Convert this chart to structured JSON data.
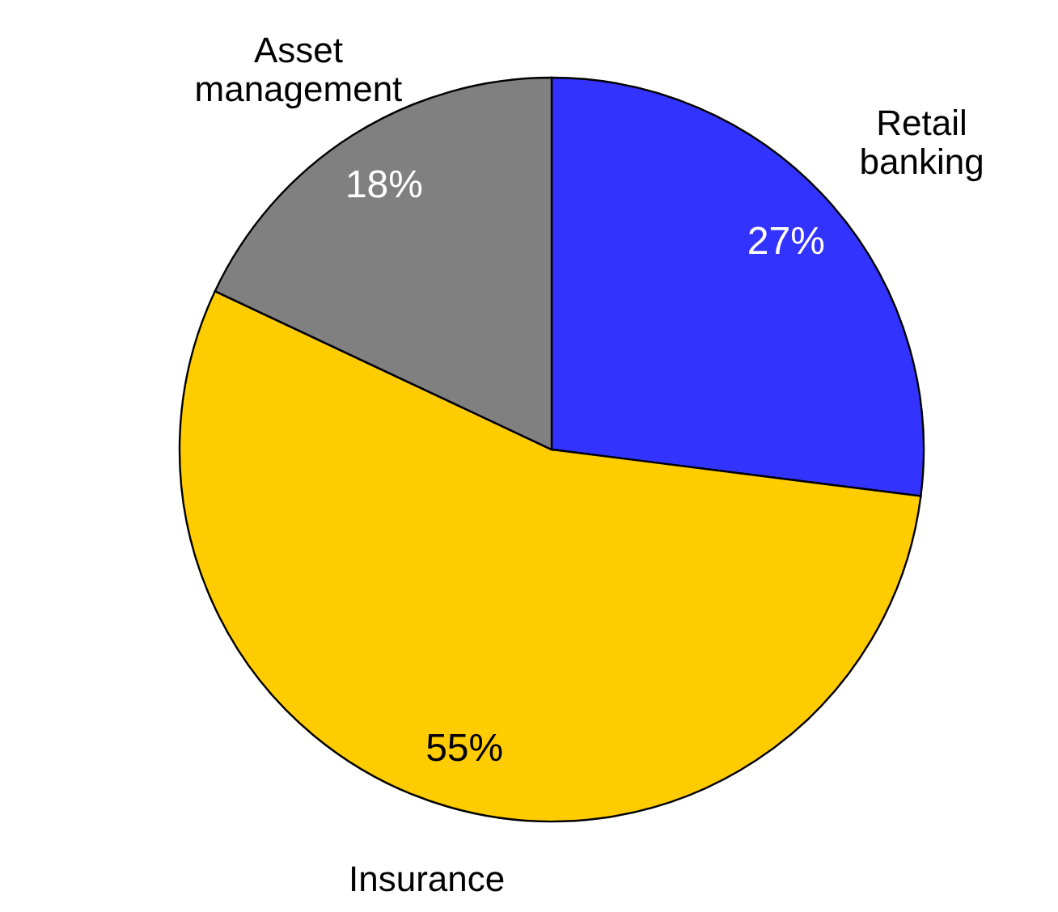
{
  "chart_data": {
    "type": "pie",
    "categories": [
      "Retail banking",
      "Insurance",
      "Asset management"
    ],
    "values": [
      27,
      55,
      18
    ],
    "colors": [
      "#3333ff",
      "#ffcc00",
      "#808080"
    ],
    "value_labels": [
      "27%",
      "55%",
      "18%"
    ]
  }
}
